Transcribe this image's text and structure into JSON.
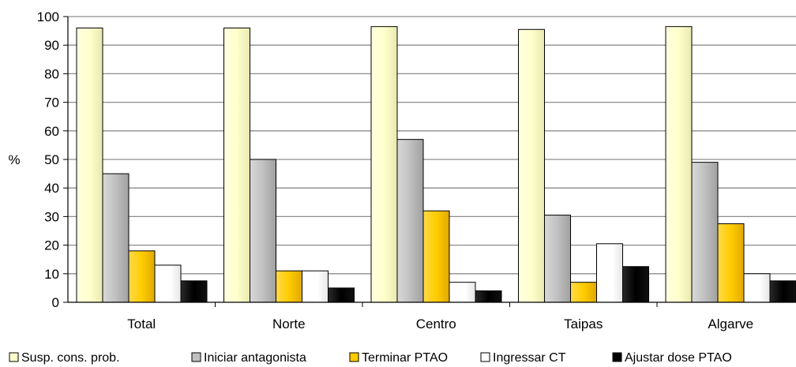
{
  "chart_data": {
    "type": "bar",
    "title": "",
    "xlabel": "",
    "ylabel": "%",
    "ylim": [
      0,
      100
    ],
    "yticks": [
      0,
      10,
      20,
      30,
      40,
      50,
      60,
      70,
      80,
      90,
      100
    ],
    "grid": true,
    "legend_position": "bottom",
    "categories": [
      "Total",
      "Norte",
      "Centro",
      "Taipas",
      "Algarve"
    ],
    "series": [
      {
        "name": "Susp. cons. prob.",
        "color": "#FFFFCC",
        "values": [
          96,
          96,
          96.5,
          95.5,
          96.5
        ]
      },
      {
        "name": "Iniciar antagonista",
        "color": "#C0C0C0",
        "values": [
          45,
          50,
          57,
          30.5,
          49
        ]
      },
      {
        "name": "Terminar PTAO",
        "color": "#FFCC00",
        "values": [
          18,
          11,
          32,
          7,
          27.5
        ]
      },
      {
        "name": "Ingressar CT",
        "color": "#FFFFFF",
        "values": [
          13,
          11,
          7,
          20.5,
          10
        ]
      },
      {
        "name": "Ajustar dose PTAO",
        "color": "#000000",
        "values": [
          7.5,
          5,
          4,
          12.5,
          7.5
        ]
      }
    ]
  }
}
